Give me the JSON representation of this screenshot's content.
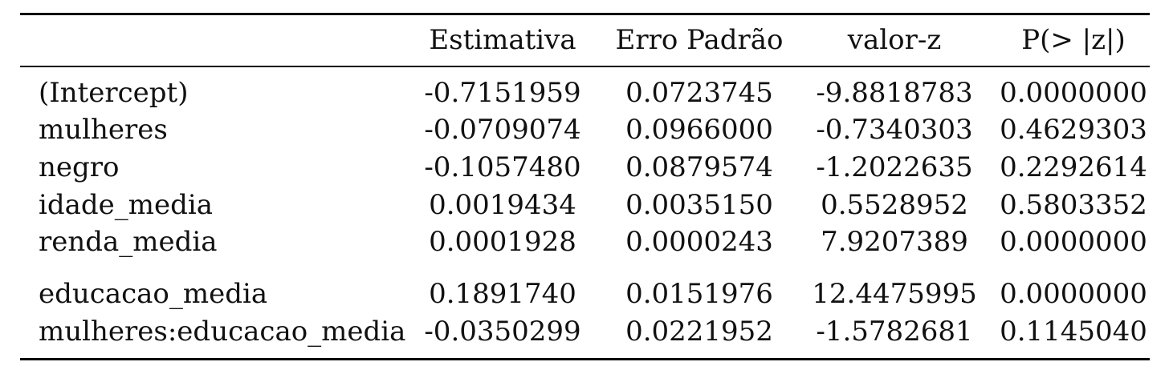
{
  "table": {
    "headers": [
      "",
      "Estimativa",
      "Erro Padrão",
      "valor-z",
      "P(> |z|)"
    ],
    "rows": [
      {
        "name": "(Intercept)",
        "values": [
          "-0.7151959",
          "0.0723745",
          "-9.8818783",
          "0.0000000"
        ]
      },
      {
        "name": "mulheres",
        "values": [
          "-0.0709074",
          "0.0966000",
          "-0.7340303",
          "0.4629303"
        ]
      },
      {
        "name": "negro",
        "values": [
          "-0.1057480",
          "0.0879574",
          "-1.2022635",
          "0.2292614"
        ]
      },
      {
        "name": "idade_media",
        "values": [
          "0.0019434",
          "0.0035150",
          "0.5528952",
          "0.5803352"
        ]
      },
      {
        "name": "renda_media",
        "values": [
          "0.0001928",
          "0.0000243",
          "7.9207389",
          "0.0000000"
        ]
      },
      {
        "name": "educacao_media",
        "values": [
          "0.1891740",
          "0.0151976",
          "12.4475995",
          "0.0000000"
        ]
      },
      {
        "name": "mulheres:educacao_media",
        "values": [
          "-0.0350299",
          "0.0221952",
          "-1.5782681",
          "0.1145040"
        ]
      }
    ]
  }
}
